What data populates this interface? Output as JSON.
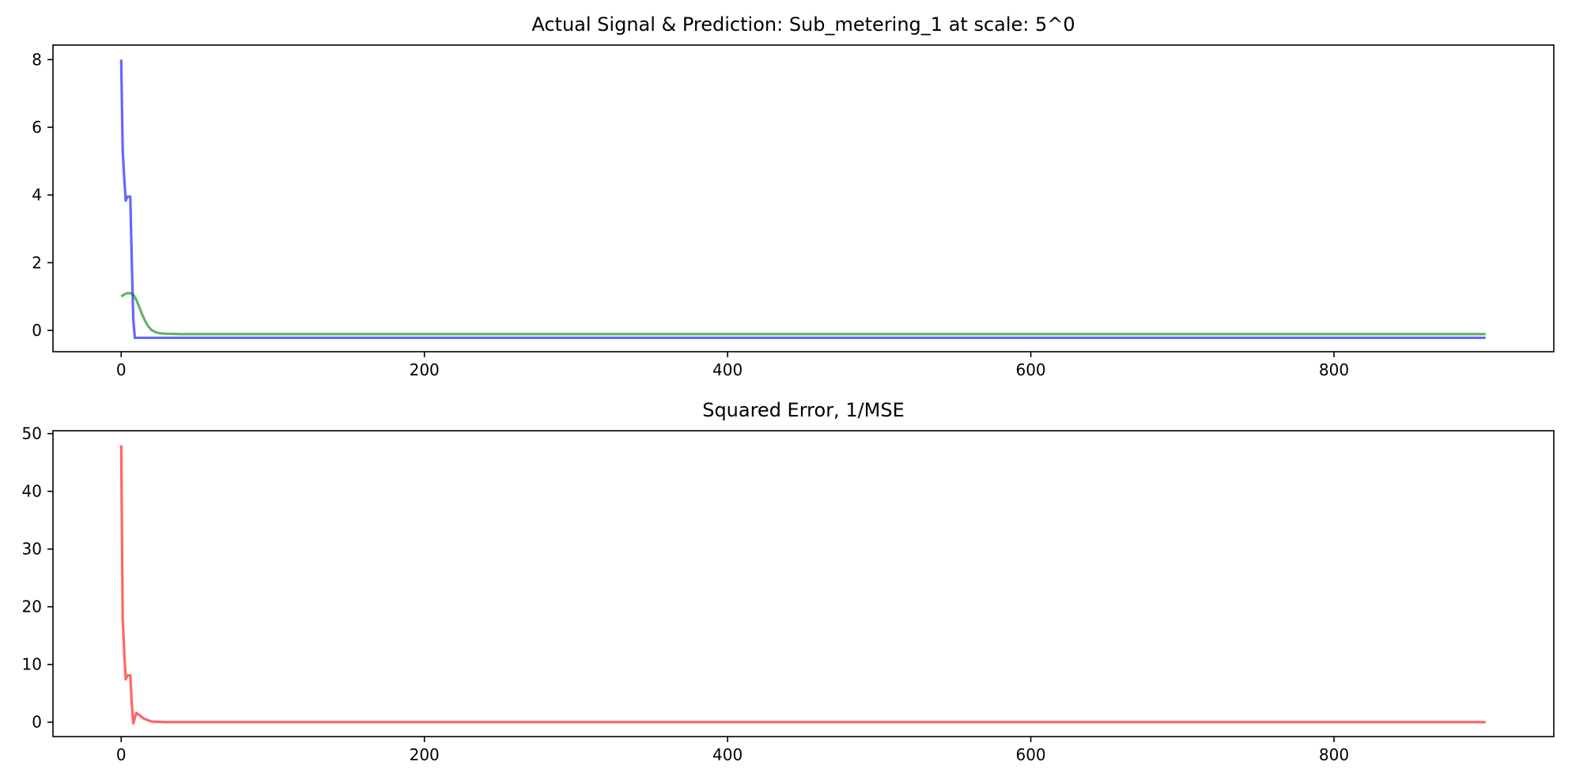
{
  "chart_data": [
    {
      "type": "line",
      "title": "Actual Signal & Prediction: Sub_metering_1 at scale: 5^0",
      "xlabel": "",
      "ylabel": "",
      "xlim": [
        -45,
        945
      ],
      "ylim": [
        -0.63,
        8.43
      ],
      "xticks": [
        0,
        200,
        400,
        600,
        800
      ],
      "yticks": [
        0,
        2,
        4,
        6,
        8
      ],
      "grid": false,
      "legend": "none",
      "series": [
        {
          "color": "#0000ff",
          "points": [
            [
              0,
              8.0
            ],
            [
              1,
              5.3
            ],
            [
              2,
              4.5
            ],
            [
              3,
              3.83
            ],
            [
              4,
              3.95
            ],
            [
              6,
              3.95
            ],
            [
              7,
              2.0
            ],
            [
              8,
              0.3
            ],
            [
              9,
              -0.22
            ],
            [
              900,
              -0.22
            ]
          ]
        },
        {
          "color": "#008000",
          "points": [
            [
              0,
              1.0
            ],
            [
              2,
              1.06
            ],
            [
              4,
              1.1
            ],
            [
              6,
              1.1
            ],
            [
              8,
              1.05
            ],
            [
              10,
              0.9
            ],
            [
              12,
              0.68
            ],
            [
              14,
              0.45
            ],
            [
              16,
              0.26
            ],
            [
              18,
              0.11
            ],
            [
              20,
              0.01
            ],
            [
              23,
              -0.06
            ],
            [
              26,
              -0.09
            ],
            [
              30,
              -0.1
            ],
            [
              40,
              -0.11
            ],
            [
              900,
              -0.11
            ]
          ]
        }
      ]
    },
    {
      "type": "line",
      "title": "Squared Error, 1/MSE",
      "xlabel": "",
      "ylabel": "",
      "xlim": [
        -45,
        945
      ],
      "ylim": [
        -2.5,
        50.5
      ],
      "xticks": [
        0,
        200,
        400,
        600,
        800
      ],
      "yticks": [
        0,
        10,
        20,
        30,
        40,
        50
      ],
      "grid": false,
      "legend": "none",
      "series": [
        {
          "color": "#ff0000",
          "points": [
            [
              0,
              48.0
            ],
            [
              1,
              18.0
            ],
            [
              2,
              12.0
            ],
            [
              3,
              7.4
            ],
            [
              4,
              8.1
            ],
            [
              6,
              8.1
            ],
            [
              7,
              3.0
            ],
            [
              8,
              -0.2
            ],
            [
              10,
              1.6
            ],
            [
              12,
              1.2
            ],
            [
              15,
              0.6
            ],
            [
              20,
              0.1
            ],
            [
              30,
              0.0
            ],
            [
              900,
              0.0
            ]
          ]
        }
      ]
    }
  ]
}
